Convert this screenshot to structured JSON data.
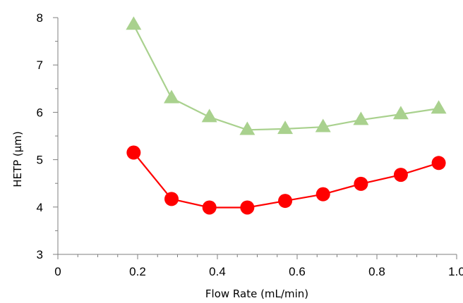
{
  "chart_data": {
    "type": "line",
    "xlabel": "Flow Rate (mL/min)",
    "ylabel": "HETP (µm)",
    "xlim": [
      0,
      1.0
    ],
    "ylim": [
      3,
      8
    ],
    "x_ticks": [
      0,
      0.2,
      0.4,
      0.6,
      0.8,
      1.0
    ],
    "x_tick_labels": [
      "0",
      "0.2",
      "0.4",
      "0.6",
      "0.8",
      "1.0"
    ],
    "y_ticks": [
      3,
      4,
      5,
      6,
      7,
      8
    ],
    "y_tick_labels": [
      "3",
      "4",
      "5",
      "6",
      "7",
      "8"
    ],
    "grid": false,
    "legend": "none",
    "series": [
      {
        "marker": "triangle",
        "color": "#a9d18e",
        "x": [
          0.19,
          0.285,
          0.38,
          0.475,
          0.57,
          0.665,
          0.76,
          0.86,
          0.955
        ],
        "y": [
          7.85,
          6.3,
          5.9,
          5.63,
          5.65,
          5.69,
          5.84,
          5.96,
          6.08
        ]
      },
      {
        "marker": "circle",
        "color": "#ff0000",
        "x": [
          0.19,
          0.285,
          0.38,
          0.475,
          0.57,
          0.665,
          0.76,
          0.86,
          0.955
        ],
        "y": [
          5.15,
          4.17,
          3.99,
          3.99,
          4.13,
          4.27,
          4.49,
          4.68,
          4.93
        ]
      }
    ]
  }
}
